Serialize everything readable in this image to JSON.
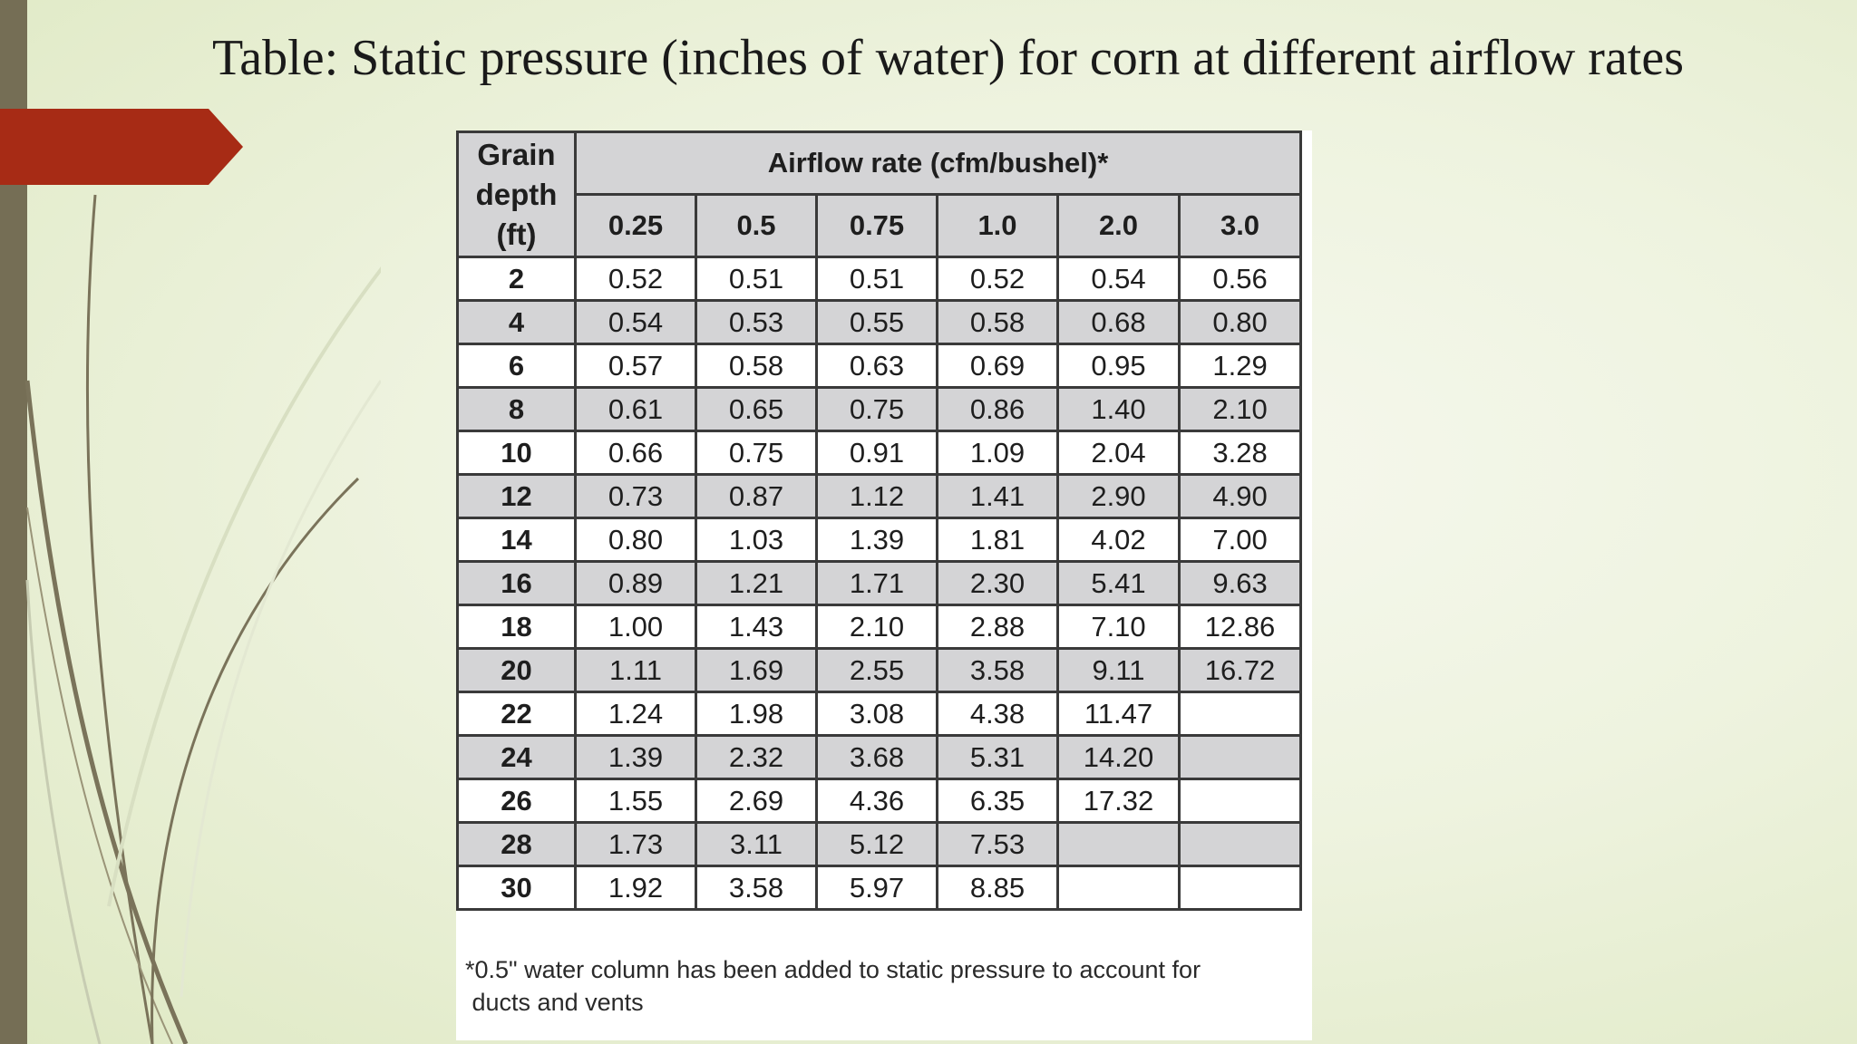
{
  "slide": {
    "title": "Table: Static pressure (inches of water) for corn at different airflow rates"
  },
  "table": {
    "depth_header": [
      "Grain",
      "depth",
      "(ft)"
    ],
    "airflow_header": "Airflow rate (cfm/bushel)*",
    "airflow_columns": [
      "0.25",
      "0.5",
      "0.75",
      "1.0",
      "2.0",
      "3.0"
    ],
    "rows": [
      {
        "depth": "2",
        "values": [
          "0.52",
          "0.51",
          "0.51",
          "0.52",
          "0.54",
          "0.56"
        ]
      },
      {
        "depth": "4",
        "values": [
          "0.54",
          "0.53",
          "0.55",
          "0.58",
          "0.68",
          "0.80"
        ]
      },
      {
        "depth": "6",
        "values": [
          "0.57",
          "0.58",
          "0.63",
          "0.69",
          "0.95",
          "1.29"
        ]
      },
      {
        "depth": "8",
        "values": [
          "0.61",
          "0.65",
          "0.75",
          "0.86",
          "1.40",
          "2.10"
        ]
      },
      {
        "depth": "10",
        "values": [
          "0.66",
          "0.75",
          "0.91",
          "1.09",
          "2.04",
          "3.28"
        ]
      },
      {
        "depth": "12",
        "values": [
          "0.73",
          "0.87",
          "1.12",
          "1.41",
          "2.90",
          "4.90"
        ]
      },
      {
        "depth": "14",
        "values": [
          "0.80",
          "1.03",
          "1.39",
          "1.81",
          "4.02",
          "7.00"
        ]
      },
      {
        "depth": "16",
        "values": [
          "0.89",
          "1.21",
          "1.71",
          "2.30",
          "5.41",
          "9.63"
        ]
      },
      {
        "depth": "18",
        "values": [
          "1.00",
          "1.43",
          "2.10",
          "2.88",
          "7.10",
          "12.86"
        ]
      },
      {
        "depth": "20",
        "values": [
          "1.11",
          "1.69",
          "2.55",
          "3.58",
          "9.11",
          "16.72"
        ]
      },
      {
        "depth": "22",
        "values": [
          "1.24",
          "1.98",
          "3.08",
          "4.38",
          "11.47",
          ""
        ]
      },
      {
        "depth": "24",
        "values": [
          "1.39",
          "2.32",
          "3.68",
          "5.31",
          "14.20",
          ""
        ]
      },
      {
        "depth": "26",
        "values": [
          "1.55",
          "2.69",
          "4.36",
          "6.35",
          "17.32",
          ""
        ]
      },
      {
        "depth": "28",
        "values": [
          "1.73",
          "3.11",
          "5.12",
          "7.53",
          "",
          ""
        ]
      },
      {
        "depth": "30",
        "values": [
          "1.92",
          "3.58",
          "5.97",
          "8.85",
          "",
          ""
        ]
      }
    ],
    "footnote_line1": "*0.5\" water column has been added to static pressure to account for",
    "footnote_line2": "ducts and vents"
  },
  "colors": {
    "left_bar": "#756e55",
    "arrow": "#a72b15",
    "shaded_row": "#d4d4d6"
  }
}
